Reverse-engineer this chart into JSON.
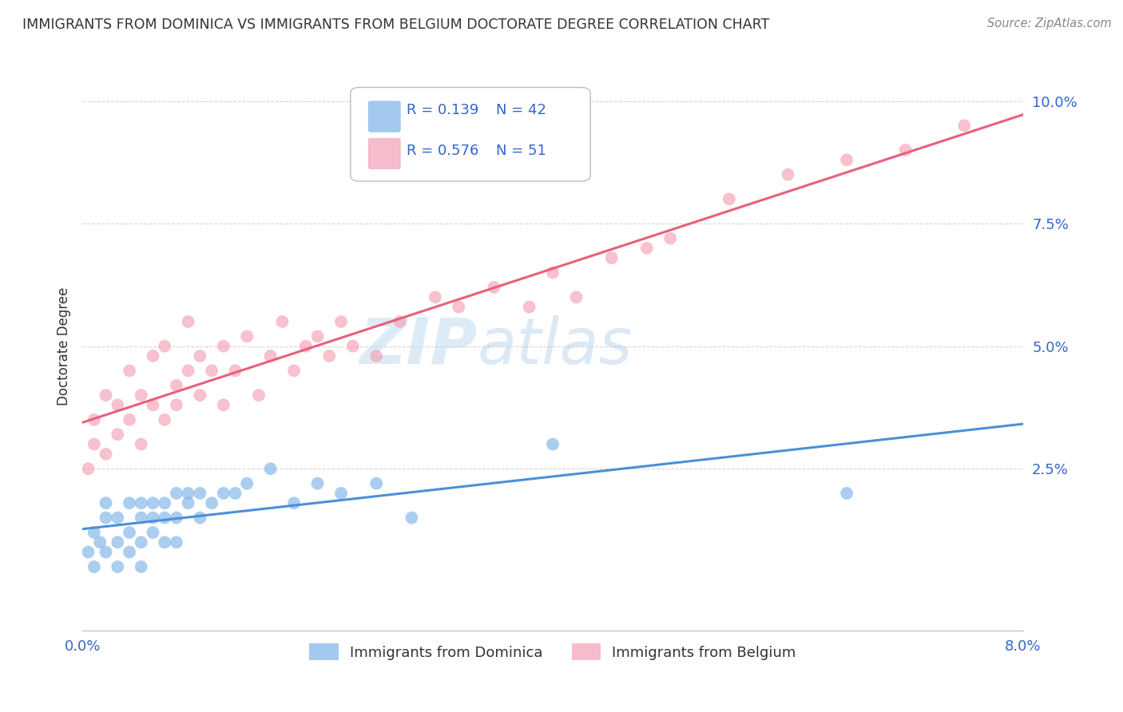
{
  "title": "IMMIGRANTS FROM DOMINICA VS IMMIGRANTS FROM BELGIUM DOCTORATE DEGREE CORRELATION CHART",
  "source": "Source: ZipAtlas.com",
  "ylabel": "Doctorate Degree",
  "x_min": 0.0,
  "x_max": 0.08,
  "y_min": -0.008,
  "y_max": 0.108,
  "dominica_color": "#7EB3E8",
  "belgium_color": "#F4A0B5",
  "dominica_line_color": "#4A90D9",
  "belgium_line_color": "#E8607A",
  "legend_R_dominica": "R = 0.139",
  "legend_N_dominica": "N = 42",
  "legend_R_belgium": "R = 0.576",
  "legend_N_belgium": "N = 51",
  "watermark_zip": "ZIP",
  "watermark_atlas": "atlas",
  "dominica_scatter_x": [
    0.0005,
    0.001,
    0.001,
    0.0015,
    0.002,
    0.002,
    0.002,
    0.003,
    0.003,
    0.003,
    0.004,
    0.004,
    0.004,
    0.005,
    0.005,
    0.005,
    0.005,
    0.006,
    0.006,
    0.006,
    0.007,
    0.007,
    0.007,
    0.008,
    0.008,
    0.008,
    0.009,
    0.009,
    0.01,
    0.01,
    0.011,
    0.012,
    0.013,
    0.014,
    0.016,
    0.018,
    0.02,
    0.022,
    0.025,
    0.028,
    0.04,
    0.065
  ],
  "dominica_scatter_y": [
    0.008,
    0.005,
    0.012,
    0.01,
    0.015,
    0.008,
    0.018,
    0.01,
    0.015,
    0.005,
    0.012,
    0.018,
    0.008,
    0.015,
    0.005,
    0.018,
    0.01,
    0.015,
    0.012,
    0.018,
    0.01,
    0.015,
    0.018,
    0.015,
    0.02,
    0.01,
    0.02,
    0.018,
    0.015,
    0.02,
    0.018,
    0.02,
    0.02,
    0.022,
    0.025,
    0.018,
    0.022,
    0.02,
    0.022,
    0.015,
    0.03,
    0.02
  ],
  "belgium_scatter_x": [
    0.0005,
    0.001,
    0.001,
    0.002,
    0.002,
    0.003,
    0.003,
    0.004,
    0.004,
    0.005,
    0.005,
    0.006,
    0.006,
    0.007,
    0.007,
    0.008,
    0.008,
    0.009,
    0.009,
    0.01,
    0.01,
    0.011,
    0.012,
    0.012,
    0.013,
    0.014,
    0.015,
    0.016,
    0.017,
    0.018,
    0.019,
    0.02,
    0.021,
    0.022,
    0.023,
    0.025,
    0.027,
    0.03,
    0.032,
    0.035,
    0.038,
    0.04,
    0.042,
    0.045,
    0.048,
    0.05,
    0.055,
    0.06,
    0.065,
    0.07,
    0.075
  ],
  "belgium_scatter_y": [
    0.025,
    0.03,
    0.035,
    0.028,
    0.04,
    0.032,
    0.038,
    0.035,
    0.045,
    0.03,
    0.04,
    0.038,
    0.048,
    0.035,
    0.05,
    0.042,
    0.038,
    0.045,
    0.055,
    0.04,
    0.048,
    0.045,
    0.05,
    0.038,
    0.045,
    0.052,
    0.04,
    0.048,
    0.055,
    0.045,
    0.05,
    0.052,
    0.048,
    0.055,
    0.05,
    0.048,
    0.055,
    0.06,
    0.058,
    0.062,
    0.058,
    0.065,
    0.06,
    0.068,
    0.07,
    0.072,
    0.08,
    0.085,
    0.088,
    0.09,
    0.095
  ],
  "background_color": "#FFFFFF",
  "grid_color": "#CCCCCC",
  "label_color": "#3366CC",
  "title_color": "#333333"
}
